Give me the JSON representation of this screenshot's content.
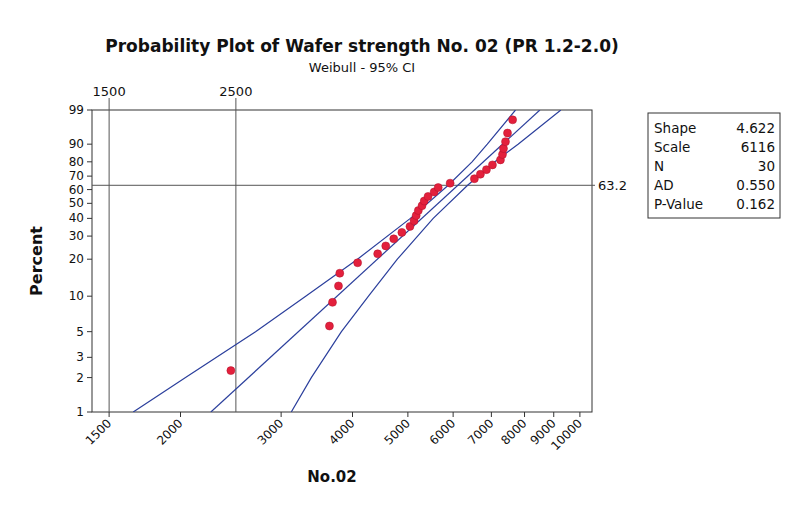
{
  "chart_data": {
    "type": "probability",
    "title": "Probability Plot of Wafer strength No. 02 (PR 1.2-2.0)",
    "subtitle": "Weibull - 95% CI",
    "x_label": "No.02",
    "y_label": "Percent",
    "log": "x",
    "grid": false,
    "xlim": [
      1400,
      10500
    ],
    "xticks": [
      1500,
      2000,
      3000,
      4000,
      5000,
      6000,
      7000,
      8000,
      9000,
      10000
    ],
    "ylim": [
      1,
      99
    ],
    "yticks": [
      1,
      2,
      3,
      5,
      10,
      20,
      30,
      40,
      50,
      60,
      70,
      80,
      90,
      99
    ],
    "reference_lines": {
      "x": [
        1500,
        2500
      ],
      "y": [
        63.2
      ]
    },
    "stats": [
      {
        "label": "Shape",
        "value": 4.622
      },
      {
        "label": "Scale",
        "value": 6116
      },
      {
        "label": "N",
        "value": 30
      },
      {
        "label": "AD",
        "value": 0.55,
        "value_label": "0.550"
      },
      {
        "label": "P-Value",
        "value": 0.162
      }
    ],
    "fit_color": "#2b3f9c",
    "series": [
      {
        "type": "scatter",
        "marker": "circle",
        "color": "#e3203c",
        "x": [
          2450,
          3645,
          3690,
          3780,
          3800,
          4083,
          4427,
          4573,
          4723,
          4880,
          5042,
          5126,
          5170,
          5215,
          5293,
          5340,
          5423,
          5558,
          5650,
          5928,
          6537,
          6697,
          6862,
          7030,
          7261,
          7320,
          7350,
          7410,
          7470,
          7625
        ],
        "values": [
          2.3,
          5.59,
          8.88,
          12.17,
          15.46,
          18.75,
          22.04,
          25.33,
          28.62,
          31.91,
          35.2,
          38.49,
          41.78,
          45.07,
          48.36,
          51.64,
          54.93,
          58.22,
          61.51,
          64.8,
          68.09,
          71.38,
          74.67,
          77.96,
          81.25,
          84.54,
          87.83,
          91.12,
          94.41,
          97.7
        ]
      },
      {
        "type": "line",
        "line_style": "solid",
        "color": "#2b3f9c",
        "x": [
          1653,
          2041,
          2706,
          3312,
          4081,
          5050,
          5883,
          6475,
          6886,
          7715
        ],
        "values": [
          1,
          2,
          5,
          10,
          20,
          40,
          63.2,
          80,
          90,
          99
        ]
      },
      {
        "type": "line",
        "line_style": "solid",
        "color": "#2b3f9c",
        "x": [
          3125,
          3388,
          3825,
          4266,
          4792,
          5537,
          6361,
          7099,
          7795,
          9262
        ],
        "values": [
          1,
          2,
          5,
          10,
          20,
          40,
          63.2,
          80,
          90,
          99
        ]
      }
    ]
  }
}
